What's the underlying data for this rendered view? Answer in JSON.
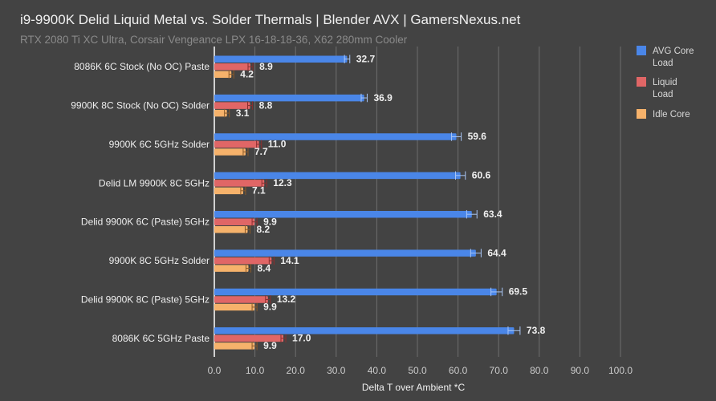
{
  "chart_data": {
    "type": "bar",
    "orientation": "horizontal",
    "title": "i9-9900K Delid Liquid Metal vs. Solder Thermals | Blender AVX | GamersNexus.net",
    "subtitle": "RTX 2080 Ti XC Ultra, Corsair Vengeance LPX 16-18-18-36, X62 280mm Cooler",
    "xlabel": "Delta T over Ambient *C",
    "ylabel": "",
    "xlim": [
      0,
      100
    ],
    "xticks": [
      "0.0",
      "10.0",
      "20.0",
      "30.0",
      "40.0",
      "50.0",
      "60.0",
      "70.0",
      "80.0",
      "90.0",
      "100.0"
    ],
    "grid": true,
    "legend_position": "right",
    "error_bars": true,
    "categories": [
      "8086K 6C Stock (No OC) Paste",
      "9900K 8C Stock (No OC) Solder",
      "9900K 6C 5GHz Solder",
      "Delid LM 9900K 8C 5GHz",
      "Delid 9900K 6C (Paste) 5GHz",
      "9900K 8C 5GHz Solder",
      "Delid 9900K 8C (Paste) 5GHz",
      "8086K 6C 5GHz Paste"
    ],
    "series": [
      {
        "name": "AVG Core Load",
        "color": "#4a86e8",
        "values": [
          32.7,
          36.9,
          59.6,
          60.6,
          63.4,
          64.4,
          69.5,
          73.8
        ]
      },
      {
        "name": "Liquid Load",
        "color": "#e06666",
        "values": [
          8.9,
          8.8,
          11.0,
          12.3,
          9.9,
          14.1,
          13.2,
          17.0
        ]
      },
      {
        "name": "Idle Core",
        "color": "#f6b26b",
        "values": [
          4.2,
          3.1,
          7.7,
          7.1,
          8.2,
          8.4,
          9.9,
          9.9
        ]
      }
    ]
  }
}
